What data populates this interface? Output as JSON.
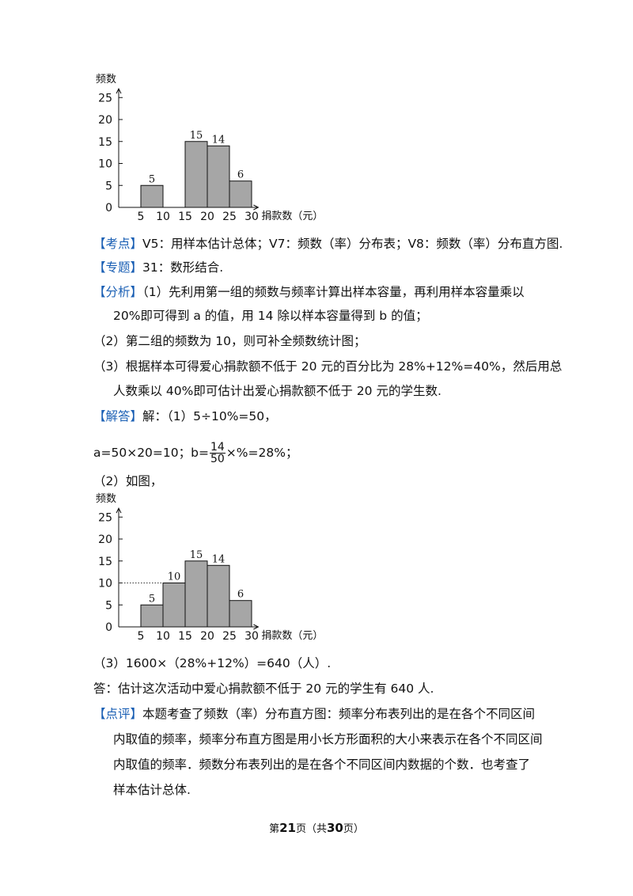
{
  "chart_data": [
    {
      "type": "bar",
      "ylabel": "频数",
      "xlabel": "捐款数（元）",
      "x_ticks": [
        "5",
        "10",
        "15",
        "20",
        "25",
        "30"
      ],
      "y_ticks": [
        "0",
        "5",
        "10",
        "15",
        "20",
        "25"
      ],
      "ylim": [
        0,
        27
      ],
      "bins": [
        [
          5,
          10
        ],
        [
          10,
          15
        ],
        [
          15,
          20
        ],
        [
          20,
          25
        ],
        [
          25,
          30
        ]
      ],
      "values": [
        5,
        0,
        15,
        14,
        6
      ],
      "labels": [
        "5",
        "",
        "15",
        "14",
        "6"
      ],
      "bar_color": "#a6a6a6",
      "reference_line": null
    },
    {
      "type": "bar",
      "ylabel": "频数",
      "xlabel": "捐款数（元）",
      "x_ticks": [
        "5",
        "10",
        "15",
        "20",
        "25",
        "30"
      ],
      "y_ticks": [
        "0",
        "5",
        "10",
        "15",
        "20",
        "25"
      ],
      "ylim": [
        0,
        27
      ],
      "bins": [
        [
          5,
          10
        ],
        [
          10,
          15
        ],
        [
          15,
          20
        ],
        [
          20,
          25
        ],
        [
          25,
          30
        ]
      ],
      "values": [
        5,
        10,
        15,
        14,
        6
      ],
      "labels": [
        "5",
        "10",
        "15",
        "14",
        "6"
      ],
      "bar_color": "#a6a6a6",
      "reference_line": 10
    }
  ],
  "text": {
    "kaodian_tag": "【考点】",
    "kaodian": "V5：用样本估计总体；V7：频数（率）分布表；V8：频数（率）分布直方图.",
    "zhuanti_tag": "【专题】",
    "zhuanti": "31：数形结合.",
    "fenxi_tag": "【分析】",
    "fenxi_1a": "（1）先利用第一组的频数与频率计算出样本容量，再利用样本容量乘以",
    "fenxi_1b": "20%即可得到 a 的值，用 14 除以样本容量得到 b 的值；",
    "fenxi_2": "（2）第二组的频数为 10，则可补全频数统计图；",
    "fenxi_3a": "（3）根据样本可得爱心捐款额不低于 20 元的百分比为 28%+12%=40%，然后用总",
    "fenxi_3b": "人数乘以 40%即可估计出爱心捐款额不低于 20 元的学生数.",
    "jieda_tag": "【解答】",
    "jieda_1": "解：（1）5÷10%=50，",
    "eq_a": "a=50×20=10；b=",
    "frac_num": "14",
    "frac_den": "50",
    "eq_b_tail": "×%=28%；",
    "jieda_2": "（2）如图，",
    "jieda_3": "（3）1600×（28%+12%）=640（人）.",
    "answer": "答：估计这次活动中爱心捐款额不低于 20 元的学生有 640 人.",
    "dianping_tag": "【点评】",
    "dianping_1": "本题考查了频数（率）分布直方图：频率分布表列出的是在各个不同区间",
    "dianping_2": "内取值的频率，频率分布直方图是用小长方形面积的大小来表示在各个不同区间",
    "dianping_3": "内取值的频率．频数分布表列出的是在各个不同区间内数据的个数．也考查了",
    "dianping_4": "样本估计总体."
  },
  "footer": {
    "pre": "第",
    "page": "21",
    "mid": "页（共",
    "total": "30",
    "post": "页）"
  }
}
